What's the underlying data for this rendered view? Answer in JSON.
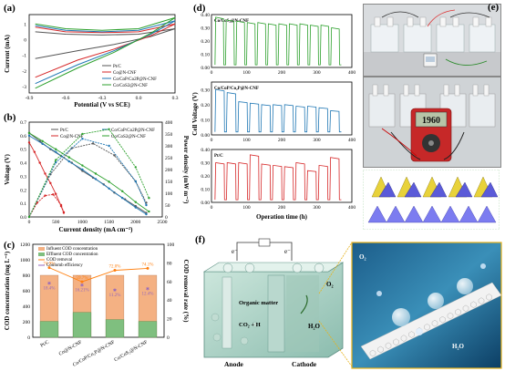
{
  "panels": {
    "a": {
      "label": "(a)",
      "chart_data": {
        "type": "line",
        "xlabel": "Potential (V vs SCE)",
        "ylabel": "Current (mA)",
        "xlim": [
          -0.9,
          0.3
        ],
        "ylim": [
          -3.4,
          1.6
        ],
        "xticks": [
          -0.9,
          -0.6,
          -0.3,
          0.0,
          0.3
        ],
        "yticks": [
          -3,
          -2,
          -1,
          0,
          1
        ],
        "legend_position": "bottom-right",
        "series": [
          {
            "name": "Pt/C",
            "color": "#555555",
            "x": [
              -0.85,
              -0.6,
              -0.3,
              0.0,
              0.3,
              0.1,
              -0.2,
              -0.5,
              -0.85
            ],
            "y": [
              0.5,
              0.35,
              0.3,
              0.35,
              0.7,
              0.2,
              -0.3,
              -0.7,
              -1.2
            ]
          },
          {
            "name": "Co@N-CNF",
            "color": "#d62728",
            "x": [
              -0.85,
              -0.6,
              -0.3,
              0.0,
              0.3,
              0.1,
              -0.2,
              -0.5,
              -0.85
            ],
            "y": [
              0.8,
              0.5,
              0.45,
              0.5,
              1.0,
              0.25,
              -0.6,
              -1.3,
              -2.4
            ]
          },
          {
            "name": "Co/CoP/Co2P@N-CNF",
            "color": "#1f77b4",
            "x": [
              -0.85,
              -0.6,
              -0.3,
              0.0,
              0.3,
              0.1,
              -0.2,
              -0.5,
              -0.85
            ],
            "y": [
              0.9,
              0.6,
              0.5,
              0.6,
              1.2,
              0.35,
              -0.7,
              -1.6,
              -2.8
            ]
          },
          {
            "name": "Co/CoS2@N-CNF",
            "color": "#2ca02c",
            "x": [
              -0.85,
              -0.6,
              -0.3,
              0.0,
              0.3,
              0.1,
              -0.2,
              -0.5,
              -0.85
            ],
            "y": [
              1.0,
              0.7,
              0.6,
              0.7,
              1.4,
              0.4,
              -0.8,
              -1.8,
              -3.1
            ]
          }
        ]
      }
    },
    "b": {
      "label": "(b)",
      "chart_data": {
        "type": "line",
        "xlabel": "Current density (mA cm⁻²)",
        "ylabel": "Voltage (V)",
        "ylabel_right": "Power density (mW m⁻²)",
        "xlim": [
          0,
          2500
        ],
        "ylim": [
          0.0,
          0.7
        ],
        "ylim_right": [
          0,
          400
        ],
        "xticks": [
          0,
          500,
          1000,
          1500,
          2000,
          2500
        ],
        "yticks": [
          0.0,
          0.1,
          0.2,
          0.3,
          0.4,
          0.5,
          0.6,
          0.7
        ],
        "yticks_right": [
          0,
          50,
          100,
          150,
          200,
          250,
          300,
          350,
          400
        ],
        "legend_position": "top",
        "series": [
          {
            "name": "Pt/C",
            "color": "#555555",
            "x": [
              0,
              200,
              400,
              600,
              800,
              1000,
              1200,
              1400,
              1600,
              1800,
              2000,
              2200
            ],
            "y": [
              0.62,
              0.56,
              0.5,
              0.45,
              0.4,
              0.34,
              0.29,
              0.24,
              0.18,
              0.13,
              0.08,
              0.03
            ]
          },
          {
            "name": "Co@N-CNF",
            "color": "#d62728",
            "x": [
              0,
              100,
              200,
              300,
              400,
              500,
              600,
              650
            ],
            "y": [
              0.55,
              0.48,
              0.4,
              0.32,
              0.25,
              0.17,
              0.08,
              0.03
            ]
          },
          {
            "name": "Co/CoP/Co2P@N-CNF",
            "color": "#1f77b4",
            "x": [
              0,
              250,
              500,
              750,
              1000,
              1250,
              1500,
              1750,
              2000,
              2200
            ],
            "y": [
              0.6,
              0.54,
              0.48,
              0.41,
              0.35,
              0.28,
              0.21,
              0.14,
              0.07,
              0.02
            ]
          },
          {
            "name": "Co/CoS2@N-CNF",
            "color": "#2ca02c",
            "x": [
              0,
              250,
              500,
              750,
              1000,
              1250,
              1500,
              1750,
              2000,
              2250
            ],
            "y": [
              0.62,
              0.56,
              0.5,
              0.44,
              0.38,
              0.32,
              0.26,
              0.19,
              0.11,
              0.04
            ]
          }
        ],
        "power_series": [
          {
            "name": "Pt/C",
            "color": "#555555",
            "x": [
              0,
              400,
              800,
              1200,
              1600,
              2000,
              2200
            ],
            "y": [
              0,
              180,
              290,
              310,
              260,
              150,
              60
            ]
          },
          {
            "name": "Co@N-CNF",
            "color": "#d62728",
            "x": [
              0,
              150,
              300,
              450,
              600,
              650
            ],
            "y": [
              0,
              60,
              90,
              95,
              50,
              20
            ]
          },
          {
            "name": "Co/CoP/Co2P@N-CNF",
            "color": "#1f77b4",
            "x": [
              0,
              500,
              1000,
              1500,
              2000,
              2200
            ],
            "y": [
              0,
              230,
              330,
              300,
              150,
              50
            ]
          },
          {
            "name": "Co/CoS2@N-CNF",
            "color": "#2ca02c",
            "x": [
              0,
              500,
              1000,
              1500,
              2000,
              2250
            ],
            "y": [
              0,
              240,
              350,
              370,
              210,
              80
            ]
          }
        ]
      }
    },
    "c": {
      "label": "(c)",
      "chart_data": {
        "type": "bar",
        "ylabel": "COD concentration (mg L⁻¹)",
        "ylabel_right": "COD removal rate (%)",
        "categories": [
          "Pt/C",
          "Co@N-CNF",
          "Co/CoP/Co₂P@N-CNF",
          "Co/CoS₂@N-CNF"
        ],
        "ylim": [
          0,
          1200
        ],
        "ylim_right": [
          0,
          100
        ],
        "yticks": [
          0,
          200,
          400,
          600,
          800,
          1000,
          1200
        ],
        "yticks_right": [
          0,
          20,
          40,
          60,
          80,
          100
        ],
        "legend_position": "top-left",
        "series": [
          {
            "name": "Influent COD concentration",
            "color": "#f4b183",
            "values": [
              800,
              800,
              800,
              800
            ]
          },
          {
            "name": "Effluent COD concentration",
            "color": "#7fbf7f",
            "values": [
              205,
              320,
              228,
              205
            ]
          },
          {
            "name": "COD removal",
            "color": "#ff7f0e",
            "values": [
              74.9,
              59.7,
              72.0,
              74.1
            ]
          },
          {
            "name": "Coulomb efficiency",
            "color": "#9467bd",
            "values": [
              18.4,
              16.21,
              11.2,
              12.4
            ]
          }
        ],
        "data_labels_removal": [
          "74.9%",
          "59.7%",
          "72.0%",
          "74.1%"
        ],
        "data_labels_ce": [
          "18.4%",
          "16.21%",
          "11.2%",
          "12.4%"
        ]
      }
    },
    "d": {
      "label": "(d)",
      "ylabel": "Cell Voltage (V)",
      "xlabel": "Operation time (h)",
      "xlim": [
        0,
        400
      ],
      "xticks": [
        0,
        100,
        200,
        300,
        400
      ],
      "subplots": [
        {
          "title": "Co/CoS₂@N-CNF",
          "color": "#2ca02c",
          "ylim": [
            0,
            0.4
          ],
          "yticks": [
            0.0,
            0.05,
            0.1,
            0.15,
            0.2,
            0.25,
            0.3,
            0.35,
            0.4
          ],
          "plateau": [
            0.38,
            0.36,
            0.35,
            0.34,
            0.34,
            0.33,
            0.33,
            0.33,
            0.33,
            0.32,
            0.32,
            0.3
          ]
        },
        {
          "title": "Co/CoP/Co₂P@N-CNF",
          "color": "#1f77b4",
          "ylim": [
            0,
            0.35
          ],
          "yticks": [
            0.0,
            0.05,
            0.1,
            0.15,
            0.2,
            0.25,
            0.3,
            0.35
          ],
          "plateau": [
            0.3,
            0.28,
            0.22,
            0.21,
            0.2,
            0.2,
            0.2,
            0.19,
            0.19,
            0.18,
            0.16
          ]
        },
        {
          "title": "Pt/C",
          "color": "#d62728",
          "ylim": [
            0,
            0.4
          ],
          "yticks": [
            0.0,
            0.05,
            0.1,
            0.15,
            0.2,
            0.25,
            0.3,
            0.35,
            0.4
          ],
          "plateau": [
            0.3,
            0.3,
            0.3,
            0.36,
            0.29,
            0.28,
            0.27,
            0.3,
            0.24,
            0.28,
            0.34
          ]
        }
      ]
    },
    "e": {
      "label": "(e)",
      "meter_reading": "1960"
    },
    "f": {
      "label": "(f)",
      "texts": {
        "e_left": "e⁻",
        "e_right": "e⁻",
        "o2": "O₂",
        "organic": "Organic matter",
        "co2": "CO₂ + H",
        "h2o": "H₂O",
        "anode": "Anode",
        "cathode": "Cathode",
        "zoom_o2": "O₂",
        "zoom_h2o": "H₂O"
      }
    }
  }
}
